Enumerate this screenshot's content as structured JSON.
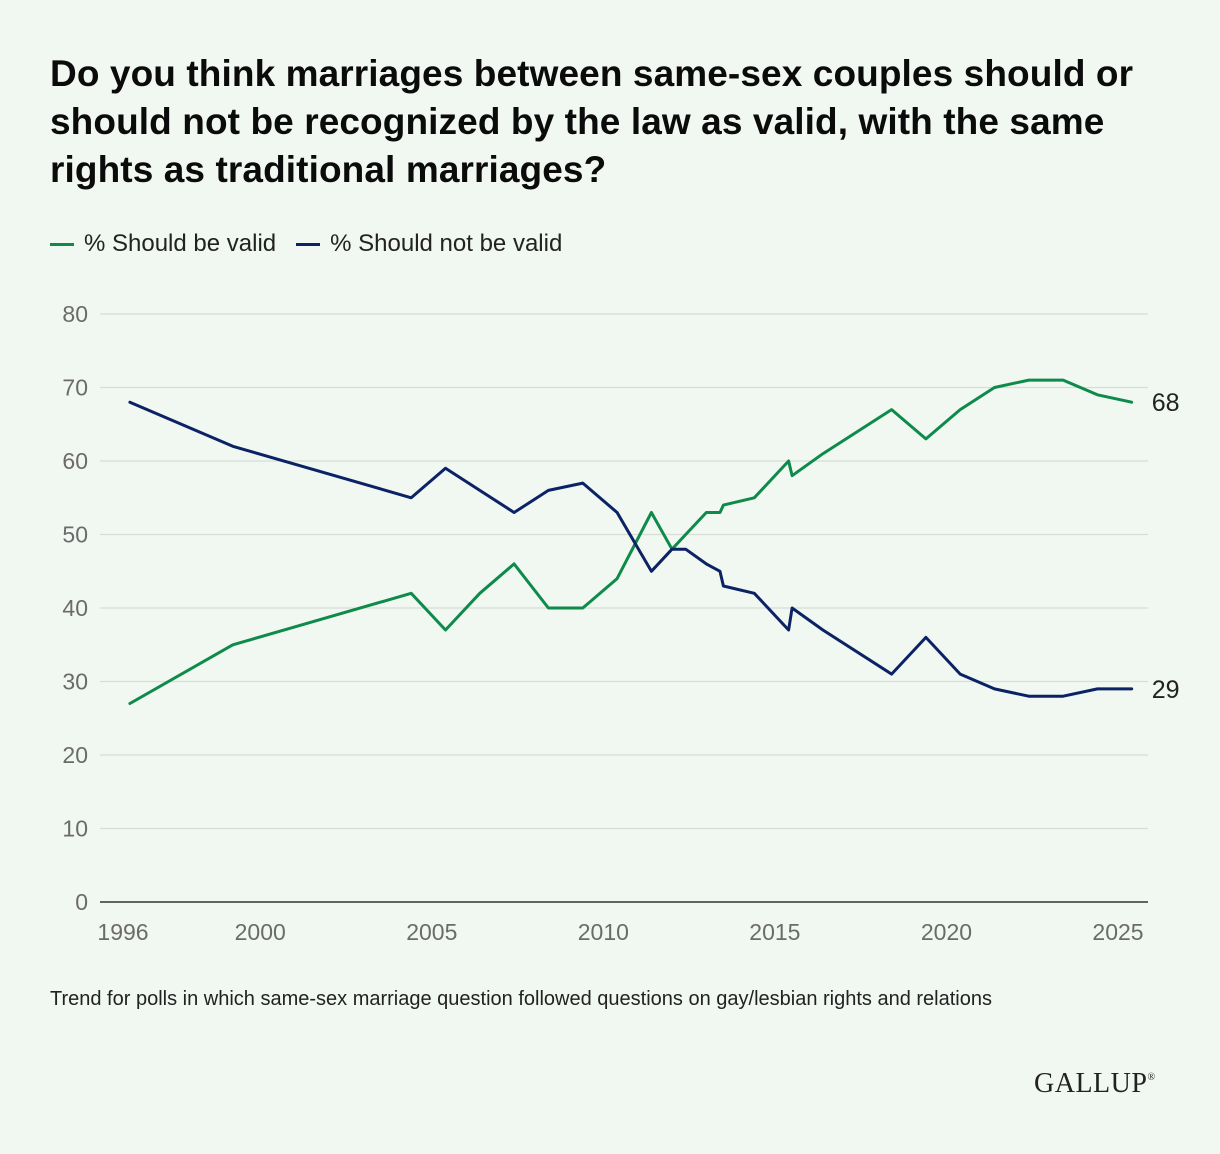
{
  "title": "Do you think marriages between same-sex couples should or should not be recognized by the law as valid, with the same rights as traditional marriages?",
  "footnote": "Trend for polls in which same-sex marriage question followed questions on gay/lesbian rights and relations",
  "logo": "GALLUP",
  "logo_mark": "®",
  "colors": {
    "valid": "#0e8a4a",
    "not_valid": "#0b2265",
    "grid": "#d5ddd5",
    "tick": "#6b6b6b"
  },
  "chart_data": {
    "type": "line",
    "title": "Do you think marriages between same-sex couples should or should not be recognized by the law as valid, with the same rights as traditional marriages?",
    "xlabel": "",
    "ylabel": "",
    "xlim": [
      1996,
      2026
    ],
    "ylim": [
      0,
      80
    ],
    "x_ticks": [
      1996,
      2000,
      2005,
      2010,
      2015,
      2020,
      2025
    ],
    "y_ticks": [
      0,
      10,
      20,
      30,
      40,
      50,
      60,
      70,
      80
    ],
    "legend": "top-left",
    "series": [
      {
        "name": "% Should be valid",
        "color": "#0e8a4a",
        "end_label": "68",
        "x": [
          1996.2,
          1999.2,
          2004.4,
          2005.4,
          2006.4,
          2007.4,
          2008.4,
          2009.4,
          2010.4,
          2011.4,
          2012.0,
          2012.4,
          2013.0,
          2013.4,
          2013.5,
          2014.4,
          2015.4,
          2015.5,
          2016.4,
          2018.4,
          2019.4,
          2020.4,
          2021.4,
          2022.4,
          2023.4,
          2024.4,
          2025.4
        ],
        "values": [
          27,
          35,
          42,
          37,
          42,
          46,
          40,
          40,
          44,
          53,
          48,
          50,
          53,
          53,
          54,
          55,
          60,
          58,
          61,
          67,
          63,
          67,
          70,
          71,
          71,
          69,
          68
        ]
      },
      {
        "name": "% Should not be valid",
        "color": "#0b2265",
        "end_label": "29",
        "x": [
          1996.2,
          1999.2,
          2004.4,
          2005.4,
          2006.4,
          2007.4,
          2008.4,
          2009.4,
          2010.4,
          2011.4,
          2012.0,
          2012.4,
          2013.0,
          2013.4,
          2013.5,
          2014.4,
          2015.4,
          2015.5,
          2016.4,
          2018.4,
          2019.4,
          2020.4,
          2021.4,
          2022.4,
          2023.4,
          2024.4,
          2025.4
        ],
        "values": [
          68,
          62,
          55,
          59,
          56,
          53,
          56,
          57,
          53,
          45,
          48,
          48,
          46,
          45,
          43,
          42,
          37,
          40,
          37,
          31,
          36,
          31,
          29,
          28,
          28,
          29,
          29
        ]
      }
    ]
  }
}
